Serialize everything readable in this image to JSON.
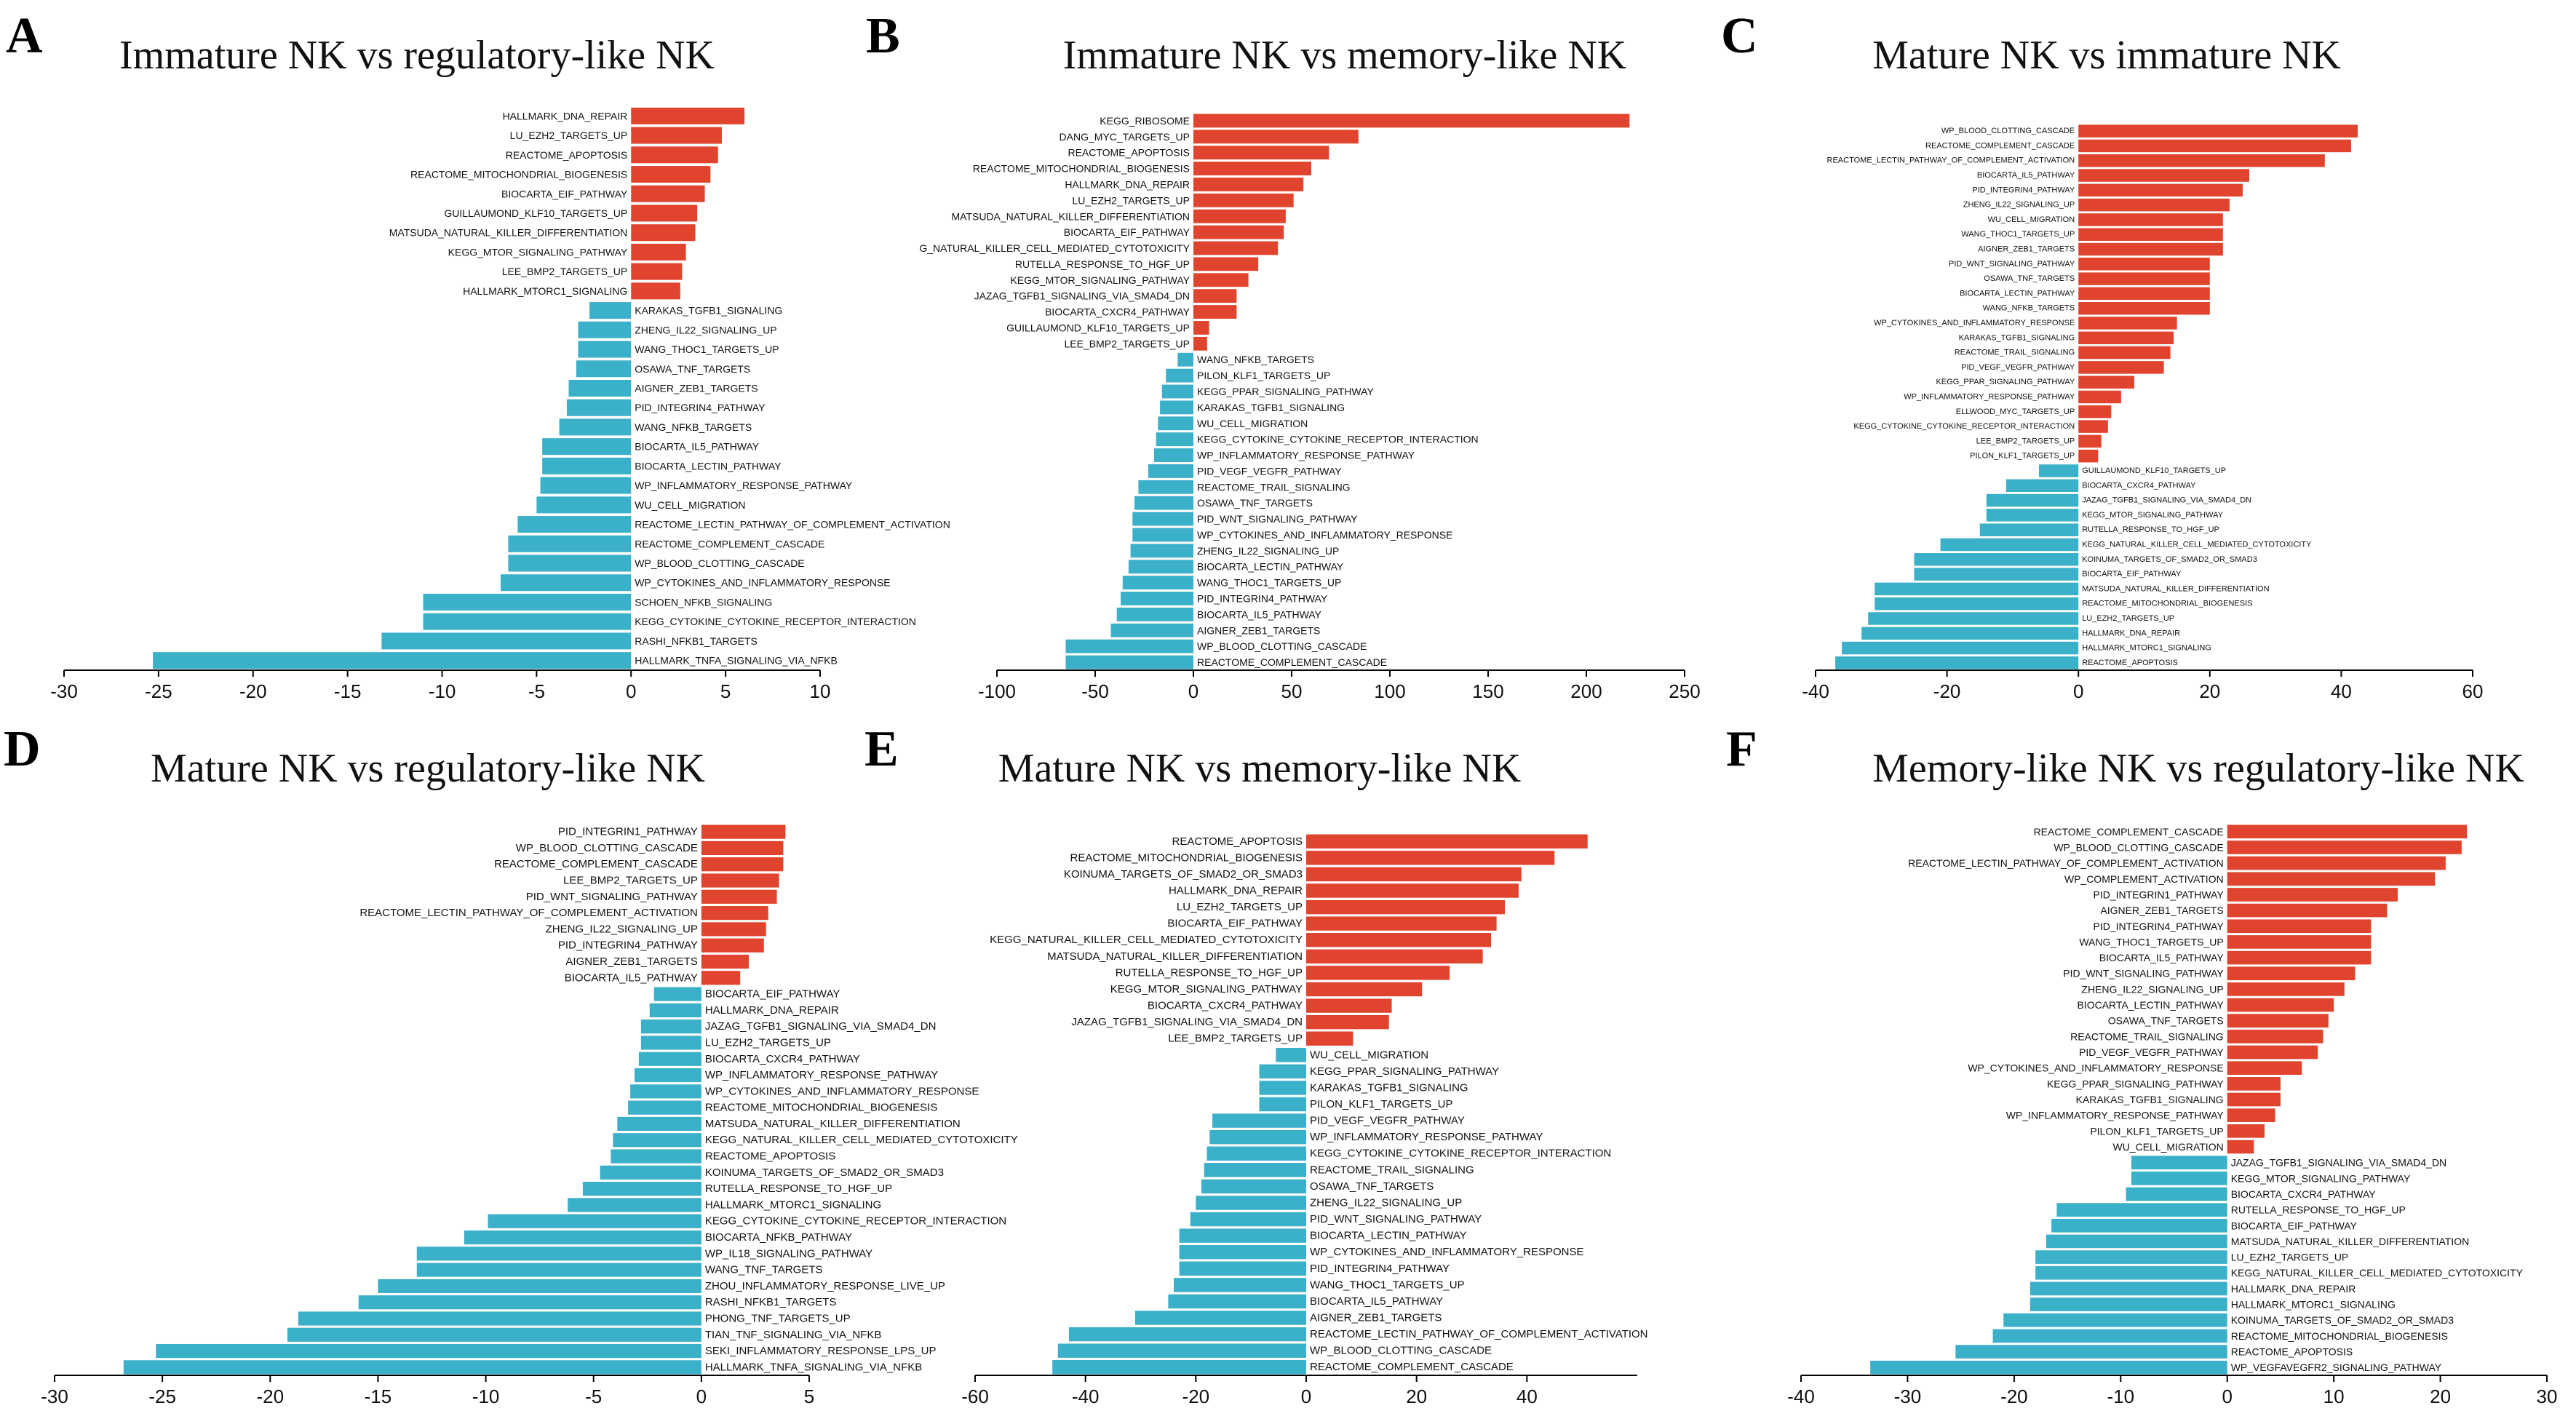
{
  "colors": {
    "positive": "#e0442e",
    "negative": "#3ab0c9",
    "axis": "#000000"
  },
  "chart_data": [
    {
      "type": "bar",
      "orientation": "horizontal",
      "panel_label": "A",
      "title": "Immature NK vs regulatory-like NK",
      "xlim": [
        -30,
        10
      ],
      "xticks": [
        -30,
        -25,
        -20,
        -15,
        -10,
        -5,
        0,
        5,
        10
      ],
      "categories": [
        "HALLMARK_DNA_REPAIR",
        "LU_EZH2_TARGETS_UP",
        "REACTOME_APOPTOSIS",
        "REACTOME_MITOCHONDRIAL_BIOGENESIS",
        "BIOCARTA_EIF_PATHWAY",
        "GUILLAUMOND_KLF10_TARGETS_UP",
        "MATSUDA_NATURAL_KILLER_DIFFERENTIATION",
        "KEGG_MTOR_SIGNALING_PATHWAY",
        "LEE_BMP2_TARGETS_UP",
        "HALLMARK_MTORC1_SIGNALING",
        "KARAKAS_TGFB1_SIGNALING",
        "ZHENG_IL22_SIGNALING_UP",
        "WANG_THOC1_TARGETS_UP",
        "OSAWA_TNF_TARGETS",
        "AIGNER_ZEB1_TARGETS",
        "PID_INTEGRIN4_PATHWAY",
        "WANG_NFKB_TARGETS",
        "BIOCARTA_IL5_PATHWAY",
        "BIOCARTA_LECTIN_PATHWAY",
        "WP_INFLAMMATORY_RESPONSE_PATHWAY",
        "WU_CELL_MIGRATION",
        "REACTOME_LECTIN_PATHWAY_OF_COMPLEMENT_ACTIVATION",
        "REACTOME_COMPLEMENT_CASCADE",
        "WP_BLOOD_CLOTTING_CASCADE",
        "WP_CYTOKINES_AND_INFLAMMATORY_RESPONSE",
        "SCHOEN_NFKB_SIGNALING",
        "KEGG_CYTOKINE_CYTOKINE_RECEPTOR_INTERACTION",
        "RASHI_NFKB1_TARGETS",
        "HALLMARK_TNFA_SIGNALING_VIA_NFKB"
      ],
      "values": [
        6.0,
        4.8,
        4.6,
        4.2,
        3.9,
        3.5,
        3.4,
        2.9,
        2.7,
        2.6,
        -2.2,
        -2.8,
        -2.8,
        -2.9,
        -3.3,
        -3.4,
        -3.8,
        -4.7,
        -4.7,
        -4.8,
        -5.0,
        -6.0,
        -6.5,
        -6.5,
        -6.9,
        -11.0,
        -11.0,
        -13.2,
        -25.3
      ]
    },
    {
      "type": "bar",
      "orientation": "horizontal",
      "panel_label": "B",
      "title": "Immature NK vs memory-like NK",
      "xlim": [
        -100,
        250
      ],
      "xticks": [
        -100,
        -50,
        0,
        50,
        100,
        150,
        200,
        250
      ],
      "categories": [
        "KEGG_RIBOSOME",
        "DANG_MYC_TARGETS_UP",
        "REACTOME_APOPTOSIS",
        "REACTOME_MITOCHONDRIAL_BIOGENESIS",
        "HALLMARK_DNA_REPAIR",
        "LU_EZH2_TARGETS_UP",
        "MATSUDA_NATURAL_KILLER_DIFFERENTIATION",
        "BIOCARTA_EIF_PATHWAY",
        "G_NATURAL_KILLER_CELL_MEDIATED_CYTOTOXICITY",
        "RUTELLA_RESPONSE_TO_HGF_UP",
        "KEGG_MTOR_SIGNALING_PATHWAY",
        "JAZAG_TGFB1_SIGNALING_VIA_SMAD4_DN",
        "BIOCARTA_CXCR4_PATHWAY",
        "GUILLAUMOND_KLF10_TARGETS_UP",
        "LEE_BMP2_TARGETS_UP",
        "WANG_NFKB_TARGETS",
        "PILON_KLF1_TARGETS_UP",
        "KEGG_PPAR_SIGNALING_PATHWAY",
        "KARAKAS_TGFB1_SIGNALING",
        "WU_CELL_MIGRATION",
        "KEGG_CYTOKINE_CYTOKINE_RECEPTOR_INTERACTION",
        "WP_INFLAMMATORY_RESPONSE_PATHWAY",
        "PID_VEGF_VEGFR_PATHWAY",
        "REACTOME_TRAIL_SIGNALING",
        "OSAWA_TNF_TARGETS",
        "PID_WNT_SIGNALING_PATHWAY",
        "WP_CYTOKINES_AND_INFLAMMATORY_RESPONSE",
        "ZHENG_IL22_SIGNALING_UP",
        "BIOCARTA_LECTIN_PATHWAY",
        "WANG_THOC1_TARGETS_UP",
        "PID_INTEGRIN4_PATHWAY",
        "BIOCARTA_IL5_PATHWAY",
        "AIGNER_ZEB1_TARGETS",
        "WP_BLOOD_CLOTTING_CASCADE",
        "REACTOME_COMPLEMENT_CASCADE"
      ],
      "values": [
        222,
        84,
        69,
        60,
        56,
        51,
        47,
        46,
        43,
        33,
        28,
        22,
        22,
        8,
        7,
        -8,
        -14,
        -16,
        -17,
        -18,
        -19,
        -20,
        -23,
        -28,
        -30,
        -31,
        -31,
        -32,
        -33,
        -36,
        -37,
        -39,
        -42,
        -65,
        -65
      ]
    },
    {
      "type": "bar",
      "orientation": "horizontal",
      "panel_label": "C",
      "title": "Mature NK vs immature NK",
      "xlim": [
        -40,
        60
      ],
      "xticks": [
        -40,
        -20,
        0,
        20,
        40,
        60
      ],
      "categories": [
        "WP_BLOOD_CLOTTING_CASCADE",
        "REACTOME_COMPLEMENT_CASCADE",
        "REACTOME_LECTIN_PATHWAY_OF_COMPLEMENT_ACTIVATION",
        "BIOCARTA_IL5_PATHWAY",
        "PID_INTEGRIN4_PATHWAY",
        "ZHENG_IL22_SIGNALING_UP",
        "WU_CELL_MIGRATION",
        "WANG_THOC1_TARGETS_UP",
        "AIGNER_ZEB1_TARGETS",
        "PID_WNT_SIGNALING_PATHWAY",
        "OSAWA_TNF_TARGETS",
        "BIOCARTA_LECTIN_PATHWAY",
        "WANG_NFKB_TARGETS",
        "WP_CYTOKINES_AND_INFLAMMATORY_RESPONSE",
        "KARAKAS_TGFB1_SIGNALING",
        "REACTOME_TRAIL_SIGNALING",
        "PID_VEGF_VEGFR_PATHWAY",
        "KEGG_PPAR_SIGNALING_PATHWAY",
        "WP_INFLAMMATORY_RESPONSE_PATHWAY",
        "ELLWOOD_MYC_TARGETS_UP",
        "KEGG_CYTOKINE_CYTOKINE_RECEPTOR_INTERACTION",
        "LEE_BMP2_TARGETS_UP",
        "PILON_KLF1_TARGETS_UP",
        "GUILLAUMOND_KLF10_TARGETS_UP",
        "BIOCARTA_CXCR4_PATHWAY",
        "JAZAG_TGFB1_SIGNALING_VIA_SMAD4_DN",
        "KEGG_MTOR_SIGNALING_PATHWAY",
        "RUTELLA_RESPONSE_TO_HGF_UP",
        "KEGG_NATURAL_KILLER_CELL_MEDIATED_CYTOTOXICITY",
        "KOINUMA_TARGETS_OF_SMAD2_OR_SMAD3",
        "BIOCARTA_EIF_PATHWAY",
        "MATSUDA_NATURAL_KILLER_DIFFERENTIATION",
        "REACTOME_MITOCHONDRIAL_BIOGENESIS",
        "LU_EZH2_TARGETS_UP",
        "HALLMARK_DNA_REPAIR",
        "HALLMARK_MTORC1_SIGNALING",
        "REACTOME_APOPTOSIS"
      ],
      "values": [
        42.5,
        41.5,
        37.5,
        26,
        25,
        23,
        22,
        22,
        22,
        20,
        20,
        20,
        20,
        15,
        14.5,
        14,
        13,
        8.5,
        6.5,
        5,
        4.5,
        3.5,
        3,
        -6,
        -11,
        -14,
        -14,
        -15,
        -21,
        -25,
        -25,
        -31,
        -31,
        -32,
        -33,
        -36,
        -37
      ]
    },
    {
      "type": "bar",
      "orientation": "horizontal",
      "panel_label": "D",
      "title": "Mature NK vs regulatory-like NK",
      "xlim": [
        -30,
        5
      ],
      "xticks": [
        -30,
        -25,
        -20,
        -15,
        -10,
        -5,
        0,
        5
      ],
      "categories": [
        "PID_INTEGRIN1_PATHWAY",
        "WP_BLOOD_CLOTTING_CASCADE",
        "REACTOME_COMPLEMENT_CASCADE",
        "LEE_BMP2_TARGETS_UP",
        "PID_WNT_SIGNALING_PATHWAY",
        "REACTOME_LECTIN_PATHWAY_OF_COMPLEMENT_ACTIVATION",
        "ZHENG_IL22_SIGNALING_UP",
        "PID_INTEGRIN4_PATHWAY",
        "AIGNER_ZEB1_TARGETS",
        "BIOCARTA_IL5_PATHWAY",
        "BIOCARTA_EIF_PATHWAY",
        "HALLMARK_DNA_REPAIR",
        "JAZAG_TGFB1_SIGNALING_VIA_SMAD4_DN",
        "LU_EZH2_TARGETS_UP",
        "BIOCARTA_CXCR4_PATHWAY",
        "WP_INFLAMMATORY_RESPONSE_PATHWAY",
        "WP_CYTOKINES_AND_INFLAMMATORY_RESPONSE",
        "REACTOME_MITOCHONDRIAL_BIOGENESIS",
        "MATSUDA_NATURAL_KILLER_DIFFERENTIATION",
        "KEGG_NATURAL_KILLER_CELL_MEDIATED_CYTOTOXICITY",
        "REACTOME_APOPTOSIS",
        "KOINUMA_TARGETS_OF_SMAD2_OR_SMAD3",
        "RUTELLA_RESPONSE_TO_HGF_UP",
        "HALLMARK_MTORC1_SIGNALING",
        "KEGG_CYTOKINE_CYTOKINE_RECEPTOR_INTERACTION",
        "BIOCARTA_NFKB_PATHWAY",
        "WP_IL18_SIGNALING_PATHWAY",
        "WANG_TNF_TARGETS",
        "ZHOU_INFLAMMATORY_RESPONSE_LIVE_UP",
        "RASHI_NFKB1_TARGETS",
        "PHONG_TNF_TARGETS_UP",
        "TIAN_TNF_SIGNALING_VIA_NFKB",
        "SEKI_INFLAMMATORY_RESPONSE_LPS_UP",
        "HALLMARK_TNFA_SIGNALING_VIA_NFKB"
      ],
      "values": [
        3.9,
        3.8,
        3.8,
        3.6,
        3.5,
        3.1,
        3.0,
        2.9,
        2.2,
        1.8,
        -2.2,
        -2.4,
        -2.8,
        -2.8,
        -2.9,
        -3.1,
        -3.3,
        -3.4,
        -3.9,
        -4.1,
        -4.2,
        -4.7,
        -5.5,
        -6.2,
        -9.9,
        -11.0,
        -13.2,
        -13.2,
        -15.0,
        -15.9,
        -18.7,
        -19.2,
        -25.3,
        -26.8
      ]
    },
    {
      "type": "bar",
      "orientation": "horizontal",
      "panel_label": "E",
      "title": "Mature NK vs memory-like NK",
      "xlim": [
        -60,
        60
      ],
      "xticks": [
        -60,
        -40,
        -20,
        0,
        20,
        40
      ],
      "categories": [
        "REACTOME_APOPTOSIS",
        "REACTOME_MITOCHONDRIAL_BIOGENESIS",
        "KOINUMA_TARGETS_OF_SMAD2_OR_SMAD3",
        "HALLMARK_DNA_REPAIR",
        "LU_EZH2_TARGETS_UP",
        "BIOCARTA_EIF_PATHWAY",
        "KEGG_NATURAL_KILLER_CELL_MEDIATED_CYTOTOXICITY",
        "MATSUDA_NATURAL_KILLER_DIFFERENTIATION",
        "RUTELLA_RESPONSE_TO_HGF_UP",
        "KEGG_MTOR_SIGNALING_PATHWAY",
        "BIOCARTA_CXCR4_PATHWAY",
        "JAZAG_TGFB1_SIGNALING_VIA_SMAD4_DN",
        "LEE_BMP2_TARGETS_UP",
        "WU_CELL_MIGRATION",
        "KEGG_PPAR_SIGNALING_PATHWAY",
        "KARAKAS_TGFB1_SIGNALING",
        "PILON_KLF1_TARGETS_UP",
        "PID_VEGF_VEGFR_PATHWAY",
        "WP_INFLAMMATORY_RESPONSE_PATHWAY",
        "KEGG_CYTOKINE_CYTOKINE_RECEPTOR_INTERACTION",
        "REACTOME_TRAIL_SIGNALING",
        "OSAWA_TNF_TARGETS",
        "ZHENG_IL22_SIGNALING_UP",
        "PID_WNT_SIGNALING_PATHWAY",
        "BIOCARTA_LECTIN_PATHWAY",
        "WP_CYTOKINES_AND_INFLAMMATORY_RESPONSE",
        "PID_INTEGRIN4_PATHWAY",
        "WANG_THOC1_TARGETS_UP",
        "BIOCARTA_IL5_PATHWAY",
        "AIGNER_ZEB1_TARGETS",
        "REACTOME_LECTIN_PATHWAY_OF_COMPLEMENT_ACTIVATION",
        "WP_BLOOD_CLOTTING_CASCADE",
        "REACTOME_COMPLEMENT_CASCADE"
      ],
      "values": [
        51,
        45,
        39,
        38.5,
        36,
        34.5,
        33.5,
        32,
        26,
        21,
        15.5,
        15,
        8.5,
        -5.5,
        -8.5,
        -8.5,
        -8.5,
        -17,
        -17.5,
        -18,
        -18.5,
        -19,
        -20,
        -21,
        -23,
        -23,
        -23,
        -24,
        -25,
        -31,
        -43,
        -45,
        -46
      ]
    },
    {
      "type": "bar",
      "orientation": "horizontal",
      "panel_label": "F",
      "title": "Memory-like NK vs regulatory-like NK",
      "xlim": [
        -40,
        30
      ],
      "xticks": [
        -40,
        -30,
        -20,
        -10,
        0,
        10,
        20,
        30
      ],
      "categories": [
        "REACTOME_COMPLEMENT_CASCADE",
        "WP_BLOOD_CLOTTING_CASCADE",
        "REACTOME_LECTIN_PATHWAY_OF_COMPLEMENT_ACTIVATION",
        "WP_COMPLEMENT_ACTIVATION",
        "PID_INTEGRIN1_PATHWAY",
        "AIGNER_ZEB1_TARGETS",
        "PID_INTEGRIN4_PATHWAY",
        "WANG_THOC1_TARGETS_UP",
        "BIOCARTA_IL5_PATHWAY",
        "PID_WNT_SIGNALING_PATHWAY",
        "ZHENG_IL22_SIGNALING_UP",
        "BIOCARTA_LECTIN_PATHWAY",
        "OSAWA_TNF_TARGETS",
        "REACTOME_TRAIL_SIGNALING",
        "PID_VEGF_VEGFR_PATHWAY",
        "WP_CYTOKINES_AND_INFLAMMATORY_RESPONSE",
        "KEGG_PPAR_SIGNALING_PATHWAY",
        "KARAKAS_TGFB1_SIGNALING",
        "WP_INFLAMMATORY_RESPONSE_PATHWAY",
        "PILON_KLF1_TARGETS_UP",
        "WU_CELL_MIGRATION",
        "JAZAG_TGFB1_SIGNALING_VIA_SMAD4_DN",
        "KEGG_MTOR_SIGNALING_PATHWAY",
        "BIOCARTA_CXCR4_PATHWAY",
        "RUTELLA_RESPONSE_TO_HGF_UP",
        "BIOCARTA_EIF_PATHWAY",
        "MATSUDA_NATURAL_KILLER_DIFFERENTIATION",
        "LU_EZH2_TARGETS_UP",
        "KEGG_NATURAL_KILLER_CELL_MEDIATED_CYTOTOXICITY",
        "HALLMARK_DNA_REPAIR",
        "HALLMARK_MTORC1_SIGNALING",
        "KOINUMA_TARGETS_OF_SMAD2_OR_SMAD3",
        "REACTOME_MITOCHONDRIAL_BIOGENESIS",
        "REACTOME_APOPTOSIS",
        "WP_VEGFAVEGFR2_SIGNALING_PATHWAY"
      ],
      "values": [
        22.5,
        22,
        20.5,
        19.5,
        16,
        15,
        13.5,
        13.5,
        13.5,
        12,
        11,
        10,
        9.5,
        9,
        8.5,
        7,
        5,
        5,
        4.5,
        3.5,
        2.5,
        -9,
        -9,
        -9.5,
        -16,
        -16.5,
        -17,
        -18,
        -18,
        -18.5,
        -18.5,
        -21,
        -22,
        -25.5,
        -33.5
      ]
    }
  ]
}
